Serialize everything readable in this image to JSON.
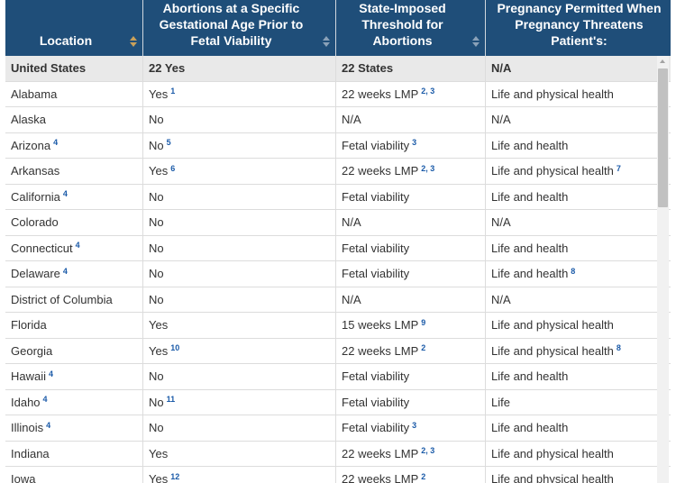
{
  "columns": [
    "Location",
    "Abortions at a Specific Gestational Age Prior to Fetal Viability",
    "State-Imposed Threshold for Abortions",
    "Pregnancy Permitted When Pregnancy Threatens Patient's:"
  ],
  "rows": [
    {
      "c1": "United States",
      "c1n": "",
      "c2": "22 Yes",
      "c2n": "",
      "c3": "22 States",
      "c3n": "",
      "c4": "N/A",
      "c4n": ""
    },
    {
      "c1": "Alabama",
      "c1n": "",
      "c2": "Yes",
      "c2n": "1",
      "c3": "22 weeks LMP",
      "c3n": "2, 3",
      "c4": "Life and physical health",
      "c4n": ""
    },
    {
      "c1": "Alaska",
      "c1n": "",
      "c2": "No",
      "c2n": "",
      "c3": "N/A",
      "c3n": "",
      "c4": "N/A",
      "c4n": ""
    },
    {
      "c1": "Arizona",
      "c1n": "4",
      "c2": "No",
      "c2n": "5",
      "c3": "Fetal viability",
      "c3n": "3",
      "c4": "Life and health",
      "c4n": ""
    },
    {
      "c1": "Arkansas",
      "c1n": "",
      "c2": "Yes",
      "c2n": "6",
      "c3": "22 weeks LMP",
      "c3n": "2, 3",
      "c4": "Life and physical health",
      "c4n": "7"
    },
    {
      "c1": "California",
      "c1n": "4",
      "c2": "No",
      "c2n": "",
      "c3": "Fetal viability",
      "c3n": "",
      "c4": "Life and health",
      "c4n": ""
    },
    {
      "c1": "Colorado",
      "c1n": "",
      "c2": "No",
      "c2n": "",
      "c3": "N/A",
      "c3n": "",
      "c4": "N/A",
      "c4n": ""
    },
    {
      "c1": "Connecticut",
      "c1n": "4",
      "c2": "No",
      "c2n": "",
      "c3": "Fetal viability",
      "c3n": "",
      "c4": "Life and health",
      "c4n": ""
    },
    {
      "c1": "Delaware",
      "c1n": "4",
      "c2": "No",
      "c2n": "",
      "c3": "Fetal viability",
      "c3n": "",
      "c4": "Life and health",
      "c4n": "8"
    },
    {
      "c1": "District of Columbia",
      "c1n": "",
      "c2": "No",
      "c2n": "",
      "c3": "N/A",
      "c3n": "",
      "c4": "N/A",
      "c4n": ""
    },
    {
      "c1": "Florida",
      "c1n": "",
      "c2": "Yes",
      "c2n": "",
      "c3": "15 weeks LMP",
      "c3n": "9",
      "c4": "Life and physical health",
      "c4n": ""
    },
    {
      "c1": "Georgia",
      "c1n": "",
      "c2": "Yes",
      "c2n": "10",
      "c3": "22 weeks LMP",
      "c3n": "2",
      "c4": "Life and physical health",
      "c4n": "8"
    },
    {
      "c1": "Hawaii",
      "c1n": "4",
      "c2": "No",
      "c2n": "",
      "c3": "Fetal viability",
      "c3n": "",
      "c4": "Life and health",
      "c4n": ""
    },
    {
      "c1": "Idaho",
      "c1n": "4",
      "c2": "No",
      "c2n": "11",
      "c3": "Fetal viability",
      "c3n": "",
      "c4": "Life",
      "c4n": ""
    },
    {
      "c1": "Illinois",
      "c1n": "4",
      "c2": "No",
      "c2n": "",
      "c3": "Fetal viability",
      "c3n": "3",
      "c4": "Life and health",
      "c4n": ""
    },
    {
      "c1": "Indiana",
      "c1n": "",
      "c2": "Yes",
      "c2n": "",
      "c3": "22 weeks LMP",
      "c3n": "2, 3",
      "c4": "Life and physical health",
      "c4n": ""
    },
    {
      "c1": "Iowa",
      "c1n": "",
      "c2": "Yes",
      "c2n": "12",
      "c3": "22 weeks LMP",
      "c3n": "2",
      "c4": "Life and physical health",
      "c4n": ""
    }
  ],
  "colors": {
    "header_bg": "#1f4e79",
    "footnote": "#1a5aa8",
    "total_row_bg": "#e9e9e9"
  }
}
